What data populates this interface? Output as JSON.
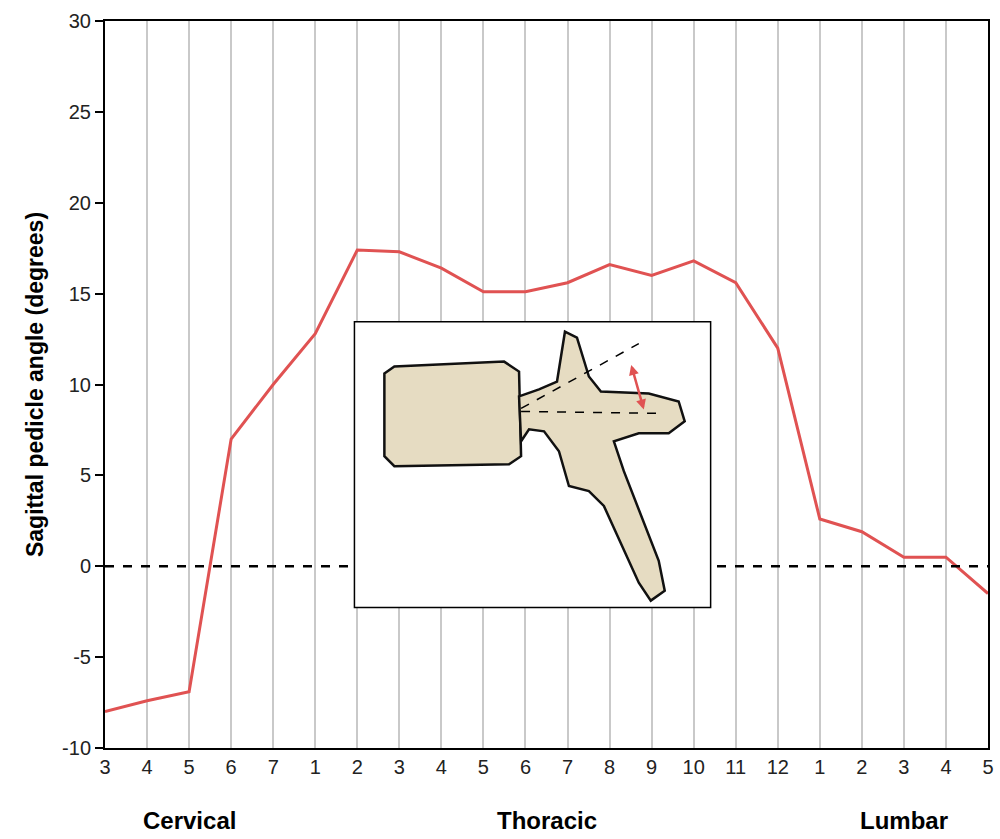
{
  "chart_data": {
    "type": "line",
    "y_label": "Sagittal pedicle angle (degrees)",
    "categories": [
      "3",
      "4",
      "5",
      "6",
      "7",
      "1",
      "2",
      "3",
      "4",
      "5",
      "6",
      "7",
      "8",
      "9",
      "10",
      "11",
      "12",
      "1",
      "2",
      "3",
      "4",
      "5"
    ],
    "groups": [
      "Cervical",
      "Cervical",
      "Cervical",
      "Cervical",
      "Cervical",
      "Thoracic",
      "Thoracic",
      "Thoracic",
      "Thoracic",
      "Thoracic",
      "Thoracic",
      "Thoracic",
      "Thoracic",
      "Thoracic",
      "Thoracic",
      "Thoracic",
      "Thoracic",
      "Lumbar",
      "Lumbar",
      "Lumbar",
      "Lumbar",
      "Lumbar"
    ],
    "values": [
      -8,
      -7.4,
      -6.9,
      7,
      10,
      12.8,
      17.4,
      17.3,
      16.4,
      15.1,
      15.1,
      15.6,
      16.6,
      16,
      16.8,
      15.6,
      12,
      2.6,
      1.9,
      0.5,
      0.5,
      -1.5
    ],
    "color": "#e05252",
    "line_style": "solid",
    "ylim": [
      -10,
      30
    ],
    "yticks": [
      -10,
      -5,
      0,
      5,
      10,
      15,
      20,
      25,
      30
    ],
    "grid": true,
    "reference_line": {
      "y": 0,
      "line_style": "dashed"
    }
  }
}
